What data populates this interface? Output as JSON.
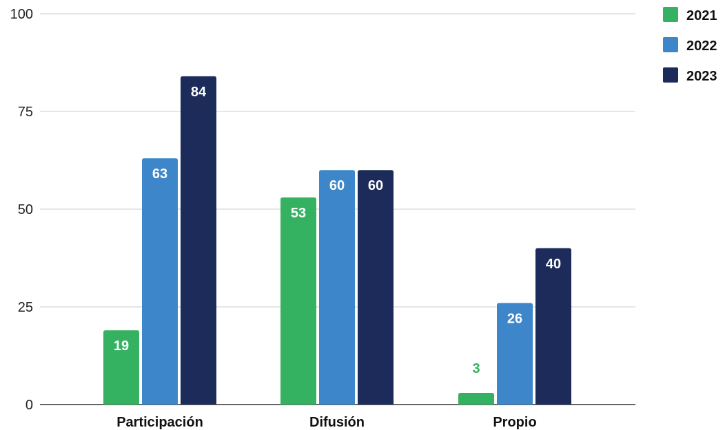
{
  "chart_data": {
    "type": "bar",
    "categories": [
      "Participación",
      "Difusión",
      "Propio"
    ],
    "series": [
      {
        "name": "2021",
        "color": "#34b262",
        "values": [
          19,
          53,
          3
        ]
      },
      {
        "name": "2022",
        "color": "#3d86c9",
        "values": [
          63,
          60,
          26
        ]
      },
      {
        "name": "2023",
        "color": "#1c2b59",
        "values": [
          84,
          60,
          40
        ]
      }
    ],
    "yticks": [
      "0",
      "25",
      "50",
      "75",
      "100"
    ],
    "ylim": [
      0,
      100
    ],
    "grid": true,
    "legend_position": "top-right",
    "title": "",
    "xlabel": "",
    "ylabel": ""
  }
}
